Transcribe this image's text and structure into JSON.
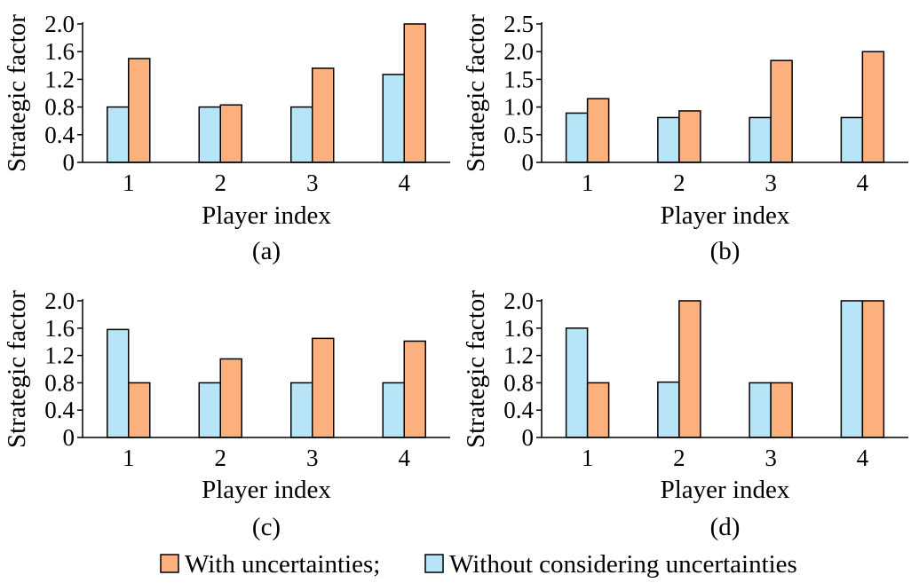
{
  "legend": {
    "with_label": "With uncertainties;",
    "without_label": "Without considering uncertainties"
  },
  "colors": {
    "with": "#FBB07E",
    "without": "#B8E4F7",
    "edge": "#000000"
  },
  "chart_data": [
    {
      "type": "bar",
      "panel": "(a)",
      "xlabel": "Player index",
      "ylabel": "Strategic factor",
      "categories": [
        "1",
        "2",
        "3",
        "4"
      ],
      "ylim": [
        0,
        2.0
      ],
      "yticks": [
        "0",
        "0.4",
        "0.8",
        "1.2",
        "1.6",
        "2.0"
      ],
      "series": [
        {
          "name": "Without considering uncertainties",
          "values": [
            0.8,
            0.8,
            0.8,
            1.27
          ]
        },
        {
          "name": "With uncertainties",
          "values": [
            1.5,
            0.83,
            1.36,
            2.0
          ]
        }
      ]
    },
    {
      "type": "bar",
      "panel": "(b)",
      "xlabel": "Player index",
      "ylabel": "Strategic factor",
      "categories": [
        "1",
        "2",
        "3",
        "4"
      ],
      "ylim": [
        0,
        2.5
      ],
      "yticks": [
        "0",
        "0.5",
        "1.0",
        "1.5",
        "2.0",
        "2.5"
      ],
      "series": [
        {
          "name": "Without considering uncertainties",
          "values": [
            0.89,
            0.81,
            0.81,
            0.81
          ]
        },
        {
          "name": "With uncertainties",
          "values": [
            1.15,
            0.93,
            1.84,
            2.0
          ]
        }
      ]
    },
    {
      "type": "bar",
      "panel": "(c)",
      "xlabel": "Player index",
      "ylabel": "Strategic factor",
      "categories": [
        "1",
        "2",
        "3",
        "4"
      ],
      "ylim": [
        0,
        2.0
      ],
      "yticks": [
        "0",
        "0.4",
        "0.8",
        "1.2",
        "1.6",
        "2.0"
      ],
      "series": [
        {
          "name": "Without considering uncertainties",
          "values": [
            1.58,
            0.8,
            0.8,
            0.8
          ]
        },
        {
          "name": "With uncertainties",
          "values": [
            0.8,
            1.15,
            1.45,
            1.41
          ]
        }
      ]
    },
    {
      "type": "bar",
      "panel": "(d)",
      "xlabel": "Player index",
      "ylabel": "Strategic factor",
      "categories": [
        "1",
        "2",
        "3",
        "4"
      ],
      "ylim": [
        0,
        2.0
      ],
      "yticks": [
        "0",
        "0.4",
        "0.8",
        "1.2",
        "1.6",
        "2.0"
      ],
      "series": [
        {
          "name": "Without considering uncertainties",
          "values": [
            1.6,
            0.81,
            0.8,
            2.0
          ]
        },
        {
          "name": "With uncertainties",
          "values": [
            0.8,
            2.0,
            0.8,
            2.0
          ]
        }
      ]
    }
  ]
}
